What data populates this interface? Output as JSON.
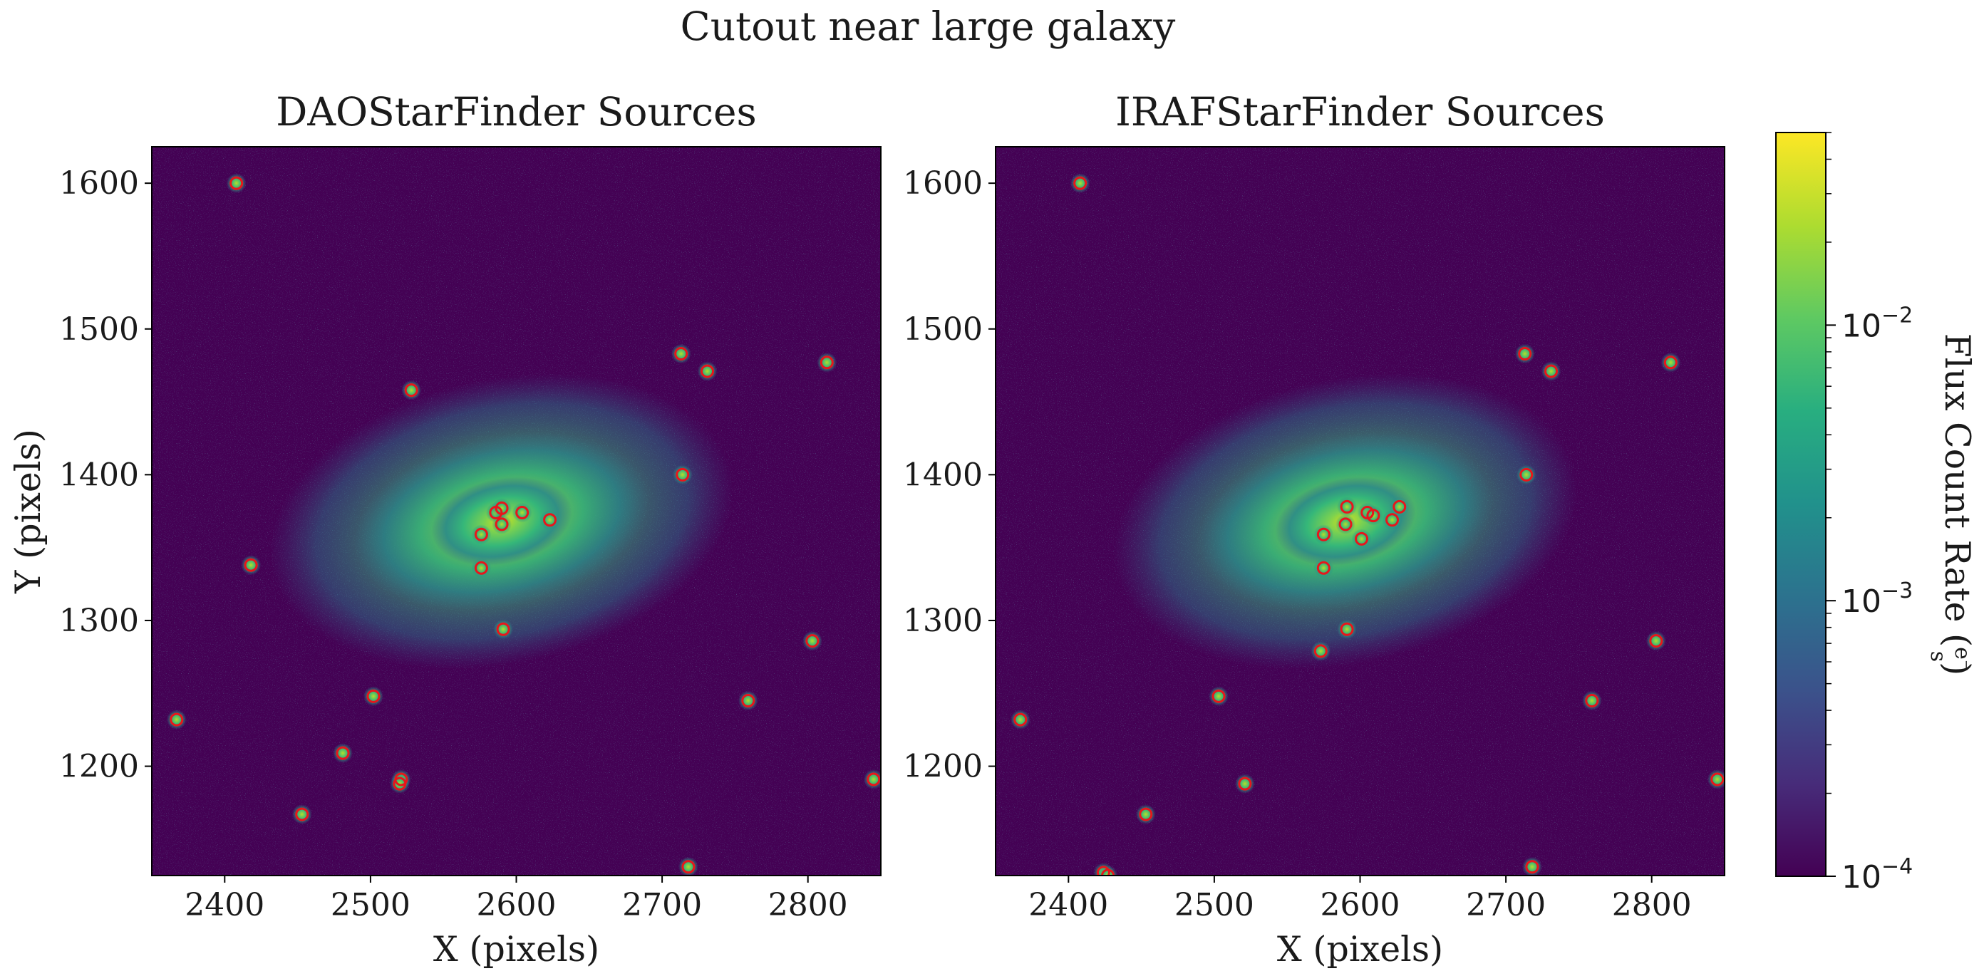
{
  "figure": {
    "suptitle": "Cutout near large galaxy"
  },
  "colorbar": {
    "label": "Flux Count Rate (e⁻/s)",
    "label_prefix": "Flux Count Rate (",
    "label_numerator": "e⁻",
    "label_denominator": "s",
    "label_suffix": ")",
    "scale": "log",
    "range": [
      0.0001,
      0.05
    ],
    "colormap": "viridis",
    "ticks": [
      {
        "value": 0.01,
        "base": "10",
        "exp": "−2"
      },
      {
        "value": 0.001,
        "base": "10",
        "exp": "−3"
      },
      {
        "value": 0.0001,
        "base": "10",
        "exp": "−4"
      }
    ]
  },
  "colors": {
    "background": "#440154",
    "marker": "#e8161b",
    "viridis": [
      "#440154",
      "#472c7a",
      "#3b528b",
      "#2c728e",
      "#21918c",
      "#28ae80",
      "#5ec962",
      "#addc30",
      "#fde725"
    ]
  },
  "chart_data": [
    {
      "type": "scatter",
      "title": "DAOStarFinder Sources",
      "xlabel": "X (pixels)",
      "ylabel": "Y (pixels)",
      "xlim": [
        2350,
        2850
      ],
      "ylim": [
        1125,
        1625
      ],
      "xticks": [
        "2400",
        "2500",
        "2600",
        "2700",
        "2800"
      ],
      "yticks": [
        "1200",
        "1300",
        "1400",
        "1500",
        "1600"
      ],
      "xtick_values": [
        2400,
        2500,
        2600,
        2700,
        2800
      ],
      "ytick_values": [
        1200,
        1300,
        1400,
        1500,
        1600
      ],
      "series": [
        {
          "marker": "open circle",
          "x": [
            2408,
            2528,
            2713,
            2731,
            2813,
            2714,
            2586,
            2590,
            2604,
            2590,
            2576,
            2623,
            2576,
            2418,
            2591,
            2803,
            2502,
            2759,
            2367,
            2481,
            2521,
            2520,
            2845,
            2453,
            2718
          ],
          "y": [
            1600,
            1458,
            1483,
            1471,
            1477,
            1400,
            1374,
            1377,
            1374,
            1366,
            1359,
            1369,
            1336,
            1338,
            1294,
            1286,
            1248,
            1245,
            1232,
            1209,
            1191,
            1188,
            1191,
            1167,
            1131
          ]
        }
      ]
    },
    {
      "type": "scatter",
      "title": "IRAFStarFinder Sources",
      "xlabel": "X (pixels)",
      "ylabel": "",
      "xlim": [
        2350,
        2850
      ],
      "ylim": [
        1125,
        1625
      ],
      "xticks": [
        "2400",
        "2500",
        "2600",
        "2700",
        "2800"
      ],
      "yticks": [
        "1200",
        "1300",
        "1400",
        "1500",
        "1600"
      ],
      "xtick_values": [
        2400,
        2500,
        2600,
        2700,
        2800
      ],
      "ytick_values": [
        1200,
        1300,
        1400,
        1500,
        1600
      ],
      "series": [
        {
          "marker": "open circle",
          "x": [
            2408,
            2713,
            2731,
            2813,
            2714,
            2591,
            2627,
            2605,
            2609,
            2590,
            2622,
            2575,
            2601,
            2575,
            2591,
            2573,
            2803,
            2503,
            2759,
            2367,
            2521,
            2845,
            2453,
            2718,
            2424,
            2427
          ],
          "y": [
            1600,
            1483,
            1471,
            1477,
            1400,
            1378,
            1378,
            1374,
            1372,
            1366,
            1369,
            1359,
            1356,
            1336,
            1294,
            1279,
            1286,
            1248,
            1245,
            1232,
            1188,
            1191,
            1167,
            1131,
            1127,
            1125
          ]
        }
      ]
    }
  ]
}
